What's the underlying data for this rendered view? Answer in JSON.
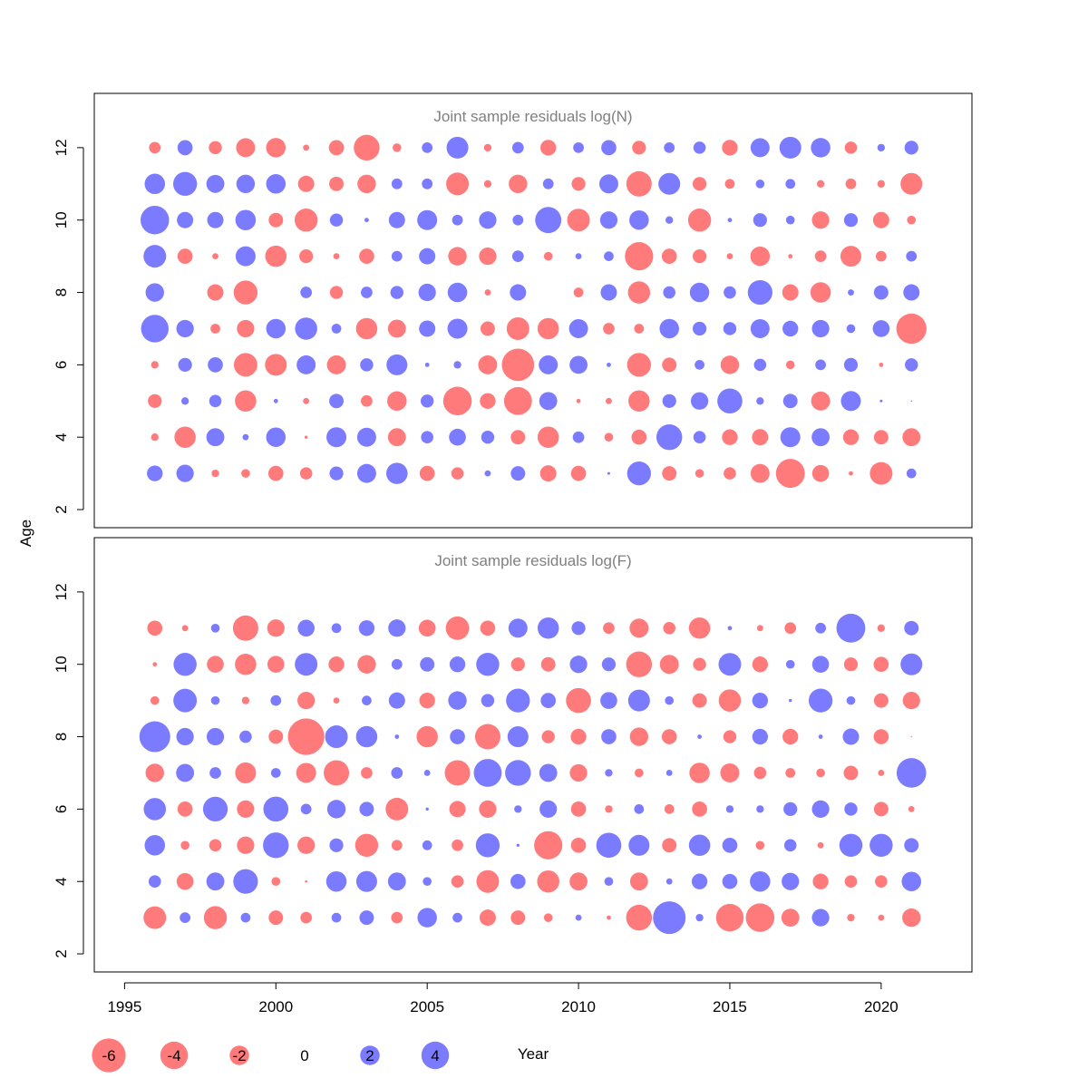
{
  "chart_data": {
    "type": "bubble",
    "xlabel": "Year",
    "ylabel": "Age",
    "xlim": [
      1994,
      2023
    ],
    "ylim": [
      1.5,
      13.5
    ],
    "x_ticks": [
      1995,
      2000,
      2005,
      2010,
      2015,
      2020
    ],
    "y_ticks": [
      2,
      4,
      6,
      8,
      10,
      12
    ],
    "colors": {
      "positive": "#7b7bff",
      "negative": "#ff7b7b"
    },
    "panels": [
      {
        "title": "Joint sample residuals log(N)",
        "years": [
          1996,
          1997,
          1998,
          1999,
          2000,
          2001,
          2002,
          2003,
          2004,
          2005,
          2006,
          2007,
          2008,
          2009,
          2010,
          2011,
          2012,
          2013,
          2014,
          2015,
          2016,
          2017,
          2018,
          2019,
          2020,
          2021
        ],
        "residuals": {
          "12": [
            -0.7,
            1.2,
            -0.9,
            -1.9,
            -2.0,
            -0.2,
            -1.2,
            -3.5,
            -0.4,
            0.6,
            2.5,
            -0.3,
            0.7,
            -1.3,
            0.6,
            1.2,
            -1.0,
            0.6,
            0.8,
            -1.3,
            1.9,
            2.5,
            2.0,
            -0.8,
            0.3,
            1.0
          ],
          "11": [
            2.2,
            3.0,
            1.7,
            1.8,
            2.0,
            -1.4,
            -1.1,
            -1.8,
            0.6,
            0.6,
            -2.7,
            -0.3,
            -1.8,
            0.6,
            -1.0,
            1.9,
            -3.4,
            2.5,
            -1.0,
            -0.5,
            0.4,
            0.5,
            -0.3,
            -0.6,
            -0.3,
            -2.5
          ],
          "10": [
            4.3,
            1.4,
            1.4,
            2.2,
            -1.1,
            -2.8,
            0.9,
            0.1,
            1.4,
            2.1,
            0.6,
            1.6,
            0.6,
            3.6,
            -2.7,
            1.6,
            2.0,
            0.3,
            -2.8,
            0.1,
            1.0,
            0.4,
            -1.6,
            1.0,
            -1.4,
            -0.4
          ],
          "9": [
            2.7,
            -1.2,
            -0.2,
            2.1,
            -2.4,
            -1.0,
            -0.2,
            -1.2,
            0.6,
            1.4,
            -1.8,
            -1.6,
            0.7,
            -0.4,
            0.2,
            0.5,
            -4.2,
            -1.2,
            -1.0,
            -0.2,
            -2.0,
            -0.1,
            -0.7,
            -2.3,
            -0.6,
            0.6
          ],
          "8": [
            1.8,
            0.0,
            -1.4,
            -3.0,
            0.0,
            0.7,
            -0.9,
            0.7,
            0.9,
            1.6,
            2.0,
            -0.2,
            1.4,
            0.0,
            -0.5,
            1.4,
            -2.6,
            0.8,
            2.0,
            0.8,
            3.2,
            -1.4,
            -2.2,
            0.2,
            1.1,
            1.4
          ],
          "7": [
            4.0,
            1.6,
            -0.5,
            -1.6,
            2.0,
            2.6,
            0.5,
            -2.4,
            -1.7,
            1.4,
            2.1,
            -1.1,
            -2.7,
            -2.4,
            1.9,
            -0.7,
            -0.5,
            2.0,
            1.0,
            0.9,
            1.9,
            1.3,
            1.6,
            0.4,
            1.5,
            -4.8
          ],
          "6": [
            -0.3,
            1.0,
            1.2,
            -2.9,
            -2.5,
            1.9,
            -1.9,
            0.9,
            2.3,
            0.1,
            0.3,
            -1.9,
            -5.5,
            1.9,
            1.7,
            0.1,
            -3.0,
            -1.1,
            0.5,
            -1.8,
            0.8,
            -0.4,
            0.6,
            1.0,
            -0.1,
            0.9
          ],
          "5": [
            -1.0,
            0.3,
            0.8,
            -2.4,
            0.1,
            -0.2,
            1.1,
            -0.7,
            -2.0,
            0.9,
            -4.3,
            -1.3,
            -4.1,
            1.7,
            -0.1,
            -0.2,
            -2.4,
            1.0,
            1.6,
            3.3,
            0.3,
            1.1,
            -1.9,
            2.1,
            0.04,
            0.01
          ],
          "4": [
            -0.3,
            -2.4,
            1.7,
            0.2,
            2.0,
            -0.05,
            2.1,
            1.9,
            -1.7,
            0.8,
            1.5,
            0.9,
            -1.1,
            -2.4,
            0.7,
            -0.4,
            -1.2,
            3.5,
            0.8,
            -1.3,
            -1.4,
            2.1,
            1.7,
            -1.3,
            -1.1,
            -1.7
          ],
          "3": [
            1.3,
            1.6,
            -0.3,
            -0.4,
            -1.2,
            -0.8,
            1.0,
            1.9,
            2.4,
            -1.2,
            -0.8,
            0.2,
            1.1,
            -1.4,
            -1.2,
            0.04,
            3.0,
            -1.1,
            -0.4,
            -0.8,
            -1.9,
            -4.4,
            -1.5,
            -0.1,
            -2.7,
            0.5
          ]
        }
      },
      {
        "title": "Joint sample residuals log(F)",
        "years": [
          1996,
          1997,
          1998,
          1999,
          2000,
          2001,
          2002,
          2003,
          2004,
          2005,
          2006,
          2007,
          2008,
          2009,
          2010,
          2011,
          2012,
          2013,
          2014,
          2015,
          2016,
          2017,
          2018,
          2019,
          2020,
          2021
        ],
        "residuals": {
          "11": [
            -1.2,
            -0.2,
            0.4,
            -3.4,
            -1.6,
            1.5,
            0.5,
            1.3,
            1.6,
            -1.5,
            -2.9,
            -1.2,
            1.9,
            2.4,
            1.0,
            -0.7,
            -1.9,
            -0.8,
            -2.4,
            0.1,
            -0.2,
            -0.7,
            0.6,
            4.4,
            -0.3,
            1.1
          ],
          "10": [
            -0.1,
            2.8,
            -1.5,
            -2.4,
            -1.5,
            2.7,
            -1.3,
            -1.8,
            0.6,
            1.1,
            1.3,
            2.8,
            -1.0,
            -1.1,
            1.6,
            1.0,
            -3.5,
            -1.9,
            -0.9,
            2.7,
            -1.3,
            0.4,
            1.5,
            -1.0,
            -1.2,
            2.5
          ],
          "9": [
            -0.4,
            2.9,
            0.4,
            -0.3,
            0.6,
            -1.6,
            -0.2,
            0.5,
            1.4,
            -1.3,
            1.8,
            0.9,
            3.0,
            1.2,
            -3.3,
            1.5,
            2.5,
            0.4,
            -1.1,
            -2.6,
            1.3,
            0.05,
            3.0,
            0.4,
            -1.1,
            -1.6
          ],
          "8": [
            5.0,
            1.6,
            1.6,
            0.8,
            -1.1,
            -7.0,
            2.7,
            2.4,
            0.1,
            -2.4,
            1.2,
            -3.4,
            2.3,
            -0.9,
            -1.3,
            1.2,
            -1.8,
            -1.2,
            0.1,
            -0.9,
            1.3,
            -1.3,
            0.1,
            1.4,
            -1.2,
            -0.01
          ],
          "7": [
            -1.8,
            1.7,
            0.7,
            -2.3,
            0.5,
            -2.1,
            -3.4,
            -0.7,
            0.7,
            0.2,
            -3.4,
            4.1,
            3.5,
            1.7,
            -1.6,
            0.3,
            -0.4,
            0.2,
            -2.2,
            -1.9,
            -0.8,
            -0.5,
            -0.4,
            -1.1,
            -0.2,
            4.6
          ],
          "6": [
            2.6,
            -1.2,
            3.2,
            -1.6,
            3.3,
            0.6,
            1.8,
            1.1,
            -2.7,
            0.05,
            -1.4,
            -1.6,
            0.3,
            1.6,
            -1.2,
            -0.3,
            0.5,
            -0.5,
            -1.2,
            0.3,
            0.3,
            1.0,
            1.6,
            0.9,
            -1.1,
            -0.2
          ],
          "5": [
            2.2,
            -0.4,
            -0.8,
            -1.6,
            3.5,
            -1.6,
            1.0,
            -2.8,
            -0.6,
            0.5,
            -0.7,
            3.0,
            0.05,
            -4.2,
            -1.2,
            3.3,
            2.3,
            -1.1,
            2.4,
            1.2,
            -0.4,
            0.8,
            -0.2,
            2.8,
            2.8,
            1.1
          ],
          "4": [
            0.8,
            -1.5,
            1.7,
            3.2,
            -0.4,
            -0.03,
            2.2,
            2.3,
            1.7,
            0.4,
            -0.8,
            -2.7,
            1.2,
            -2.6,
            -1.7,
            0.4,
            -1.7,
            0.2,
            1.3,
            1.2,
            2.2,
            1.6,
            -1.3,
            -0.8,
            -0.8,
            2.0
          ],
          "3": [
            -2.7,
            0.6,
            -2.8,
            0.5,
            -1.1,
            -0.7,
            0.5,
            1.1,
            -0.7,
            2.0,
            0.5,
            -1.4,
            -1.1,
            -0.4,
            0.2,
            -0.1,
            -3.5,
            5.6,
            0.3,
            -4.0,
            -4.3,
            -1.7,
            1.6,
            -0.3,
            -0.2,
            -1.8
          ]
        }
      }
    ],
    "legend": {
      "values": [
        -6,
        -4,
        -2,
        0,
        2,
        4
      ],
      "labels": [
        "-6",
        "-4",
        "-2",
        "0",
        "2",
        "4"
      ]
    }
  }
}
